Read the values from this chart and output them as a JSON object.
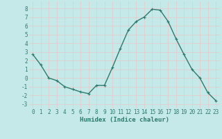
{
  "x": [
    0,
    1,
    2,
    3,
    4,
    5,
    6,
    7,
    8,
    9,
    10,
    11,
    12,
    13,
    14,
    15,
    16,
    17,
    18,
    19,
    20,
    21,
    22,
    23
  ],
  "y": [
    2.7,
    1.5,
    0.0,
    -0.3,
    -1.0,
    -1.3,
    -1.6,
    -1.8,
    -0.85,
    -0.85,
    1.2,
    3.4,
    5.5,
    6.5,
    7.0,
    7.9,
    7.8,
    6.5,
    4.5,
    2.7,
    1.0,
    -0.0,
    -1.7,
    -2.6
  ],
  "line_color": "#2d7a6e",
  "marker": "+",
  "marker_size": 3,
  "xlabel": "Humidex (Indice chaleur)",
  "xlim": [
    -0.5,
    23.5
  ],
  "ylim": [
    -3.5,
    8.8
  ],
  "yticks": [
    -3,
    -2,
    -1,
    0,
    1,
    2,
    3,
    4,
    5,
    6,
    7,
    8
  ],
  "xticks": [
    0,
    1,
    2,
    3,
    4,
    5,
    6,
    7,
    8,
    9,
    10,
    11,
    12,
    13,
    14,
    15,
    16,
    17,
    18,
    19,
    20,
    21,
    22,
    23
  ],
  "bg_color": "#c5e8e8",
  "grid_color": "#e8c8c8",
  "line_width": 1.0,
  "tick_fontsize": 5.5,
  "xlabel_fontsize": 6.5
}
